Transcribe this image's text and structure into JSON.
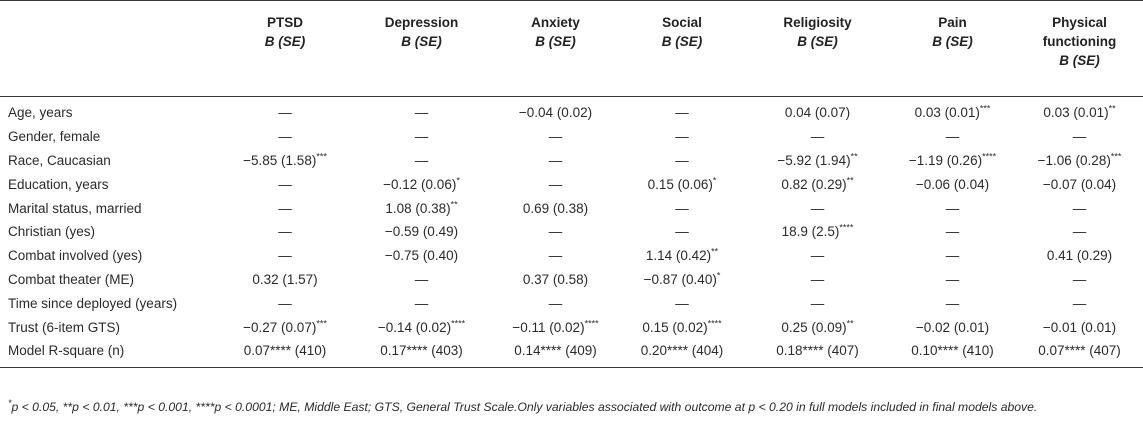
{
  "table": {
    "columns": [
      {
        "name": "PTSD",
        "sub": "B (SE)"
      },
      {
        "name": "Depression",
        "sub": "B (SE)"
      },
      {
        "name": "Anxiety",
        "sub": "B (SE)"
      },
      {
        "name": "Social",
        "sub": "B (SE)"
      },
      {
        "name": "Religiosity",
        "sub": "B (SE)"
      },
      {
        "name": "Pain",
        "sub": "B (SE)"
      },
      {
        "name": "Physical functioning",
        "sub": "B (SE)"
      }
    ],
    "rows": [
      {
        "label": "Age, years",
        "cells": [
          {
            "v": "—",
            "s": ""
          },
          {
            "v": "—",
            "s": ""
          },
          {
            "v": "−0.04 (0.02)",
            "s": ""
          },
          {
            "v": "—",
            "s": ""
          },
          {
            "v": "0.04 (0.07)",
            "s": ""
          },
          {
            "v": "0.03 (0.01)",
            "s": "***"
          },
          {
            "v": "0.03 (0.01)",
            "s": "**"
          }
        ]
      },
      {
        "label": "Gender, female",
        "cells": [
          {
            "v": "—",
            "s": ""
          },
          {
            "v": "—",
            "s": ""
          },
          {
            "v": "—",
            "s": ""
          },
          {
            "v": "—",
            "s": ""
          },
          {
            "v": "—",
            "s": ""
          },
          {
            "v": "—",
            "s": ""
          },
          {
            "v": "—",
            "s": ""
          }
        ]
      },
      {
        "label": "Race, Caucasian",
        "cells": [
          {
            "v": "−5.85 (1.58)",
            "s": "***"
          },
          {
            "v": "—",
            "s": ""
          },
          {
            "v": "—",
            "s": ""
          },
          {
            "v": "—",
            "s": ""
          },
          {
            "v": "−5.92 (1.94)",
            "s": "**"
          },
          {
            "v": "−1.19 (0.26)",
            "s": "****"
          },
          {
            "v": "−1.06 (0.28)",
            "s": "***"
          }
        ]
      },
      {
        "label": "Education, years",
        "cells": [
          {
            "v": "—",
            "s": ""
          },
          {
            "v": "−0.12 (0.06)",
            "s": "*"
          },
          {
            "v": "—",
            "s": ""
          },
          {
            "v": "0.15 (0.06)",
            "s": "*"
          },
          {
            "v": "0.82 (0.29)",
            "s": "**"
          },
          {
            "v": "−0.06 (0.04)",
            "s": ""
          },
          {
            "v": "−0.07 (0.04)",
            "s": ""
          }
        ]
      },
      {
        "label": "Marital status, married",
        "cells": [
          {
            "v": "—",
            "s": ""
          },
          {
            "v": "1.08 (0.38)",
            "s": "**"
          },
          {
            "v": "0.69 (0.38)",
            "s": ""
          },
          {
            "v": "—",
            "s": ""
          },
          {
            "v": "—",
            "s": ""
          },
          {
            "v": "—",
            "s": ""
          },
          {
            "v": "—",
            "s": ""
          }
        ]
      },
      {
        "label": "Christian (yes)",
        "cells": [
          {
            "v": "—",
            "s": ""
          },
          {
            "v": "−0.59 (0.49)",
            "s": ""
          },
          {
            "v": "—",
            "s": ""
          },
          {
            "v": "—",
            "s": ""
          },
          {
            "v": "18.9 (2.5)",
            "s": "****"
          },
          {
            "v": "—",
            "s": ""
          },
          {
            "v": "—",
            "s": ""
          }
        ]
      },
      {
        "label": "Combat involved (yes)",
        "cells": [
          {
            "v": "—",
            "s": ""
          },
          {
            "v": "−0.75 (0.40)",
            "s": ""
          },
          {
            "v": "—",
            "s": ""
          },
          {
            "v": "1.14 (0.42)",
            "s": "**"
          },
          {
            "v": "—",
            "s": ""
          },
          {
            "v": "—",
            "s": ""
          },
          {
            "v": "0.41 (0.29)",
            "s": ""
          }
        ]
      },
      {
        "label": "Combat theater (ME)",
        "cells": [
          {
            "v": "0.32 (1.57)",
            "s": ""
          },
          {
            "v": "—",
            "s": ""
          },
          {
            "v": "0.37 (0.58)",
            "s": ""
          },
          {
            "v": "−0.87 (0.40)",
            "s": "*"
          },
          {
            "v": "—",
            "s": ""
          },
          {
            "v": "—",
            "s": ""
          },
          {
            "v": "—",
            "s": ""
          }
        ]
      },
      {
        "label": "Time since deployed (years)",
        "cells": [
          {
            "v": "—",
            "s": ""
          },
          {
            "v": "—",
            "s": ""
          },
          {
            "v": "—",
            "s": ""
          },
          {
            "v": "—",
            "s": ""
          },
          {
            "v": "—",
            "s": ""
          },
          {
            "v": "—",
            "s": ""
          },
          {
            "v": "—",
            "s": ""
          }
        ]
      },
      {
        "label": "Trust (6-item GTS)",
        "cells": [
          {
            "v": "−0.27 (0.07)",
            "s": "***"
          },
          {
            "v": "−0.14 (0.02)",
            "s": "****"
          },
          {
            "v": "−0.11 (0.02)",
            "s": "****"
          },
          {
            "v": "0.15 (0.02)",
            "s": "****"
          },
          {
            "v": "0.25 (0.09)",
            "s": "**"
          },
          {
            "v": "−0.02 (0.01)",
            "s": ""
          },
          {
            "v": "−0.01 (0.01)",
            "s": ""
          }
        ]
      },
      {
        "label": "Model R-square (n)",
        "cells": [
          {
            "v": "0.07**** (410)",
            "s": ""
          },
          {
            "v": "0.17**** (403)",
            "s": ""
          },
          {
            "v": "0.14**** (409)",
            "s": ""
          },
          {
            "v": "0.20**** (404)",
            "s": ""
          },
          {
            "v": "0.18**** (407)",
            "s": ""
          },
          {
            "v": "0.10**** (410)",
            "s": ""
          },
          {
            "v": "0.07**** (407)",
            "s": ""
          }
        ]
      }
    ]
  },
  "footnote": {
    "sig_mark": "*",
    "text": "p < 0.05, **p < 0.01, ***p < 0.001, ****p < 0.0001; ME, Middle East; GTS, General Trust Scale.Only variables associated with outcome at p < 0.20 in full models included in final models above."
  }
}
